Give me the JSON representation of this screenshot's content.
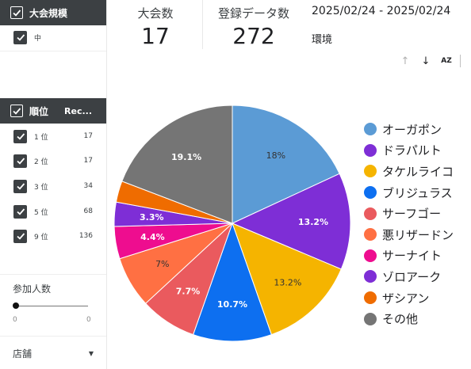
{
  "filters": {
    "size": {
      "title": "大会規模",
      "options": [
        {
          "label": "中"
        }
      ]
    },
    "rank": {
      "title": "順位",
      "column_label": "Rec...",
      "rows": [
        {
          "label": "1 位",
          "value": "17"
        },
        {
          "label": "2 位",
          "value": "17"
        },
        {
          "label": "3 位",
          "value": "34"
        },
        {
          "label": "5 位",
          "value": "68"
        },
        {
          "label": "9 位",
          "value": "136"
        }
      ]
    },
    "participants": {
      "title": "参加人数",
      "min_label": "0",
      "max_label": "0"
    },
    "store": {
      "label": "店舗"
    }
  },
  "metrics": {
    "tournaments": {
      "label": "大会数",
      "value": "17"
    },
    "entries": {
      "label": "登録データ数",
      "value": "272"
    }
  },
  "date_range": "2025/02/24 - 2025/02/24",
  "environment_label": "環境",
  "toolbar": {
    "sort_label": "AZ"
  },
  "chart_data": {
    "type": "pie",
    "slices": [
      {
        "name": "オーガポン",
        "value": 18,
        "label": "18%",
        "color": "#5b9bd5"
      },
      {
        "name": "ドラパルト",
        "value": 13.2,
        "label": "13.2%",
        "color": "#7e2ed6"
      },
      {
        "name": "タケルライコ",
        "value": 13.2,
        "label": "13.2%",
        "color": "#f5b400"
      },
      {
        "name": "ブリジュラス",
        "value": 10.7,
        "label": "10.7%",
        "color": "#0d6ff0"
      },
      {
        "name": "サーフゴー",
        "value": 7.7,
        "label": "7.7%",
        "color": "#ea5a5e"
      },
      {
        "name": "悪リザードン",
        "value": 7,
        "label": "7%",
        "color": "#ff7043"
      },
      {
        "name": "サーナイト",
        "value": 4.4,
        "label": "4.4%",
        "color": "#ee0d8f"
      },
      {
        "name": "ゾロアーク",
        "value": 3.3,
        "label": "3.3%",
        "color": "#7e2ed6"
      },
      {
        "name": "ザシアン",
        "value": 2.9,
        "label": "",
        "color": "#ef6c00"
      },
      {
        "name": "その他",
        "value": 19.1,
        "label": "19.1%",
        "color": "#757575"
      }
    ]
  }
}
